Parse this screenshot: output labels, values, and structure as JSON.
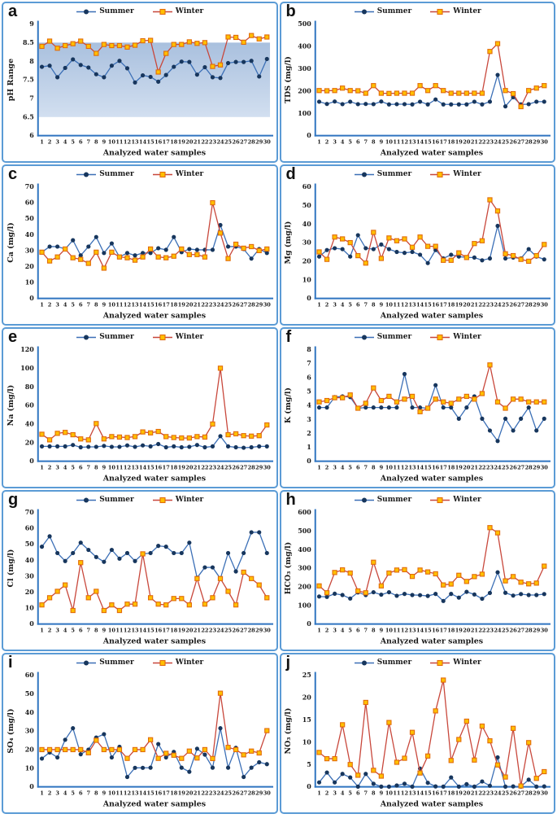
{
  "legend": {
    "summer_label": "Summer",
    "winter_label": "Winter"
  },
  "xlabel": "Analyzed water samples",
  "x_categories": [
    "1",
    "2",
    "3",
    "4",
    "5",
    "6",
    "7",
    "8",
    "9",
    "10",
    "11",
    "12",
    "13",
    "14",
    "15",
    "16",
    "17",
    "18",
    "19",
    "20",
    "21",
    "22",
    "23",
    "24",
    "25",
    "26",
    "27",
    "28",
    "29",
    "30"
  ],
  "colors": {
    "summer_line": "#3B6FB6",
    "summer_marker": "#17365D",
    "winter_line": "#C8473B",
    "winter_marker_fill": "#FFC000",
    "winter_marker_stroke": "#E26B0A",
    "axis": "#2F74C0",
    "panel_border": "#5B9BD5",
    "band_top": "#A9C0DE",
    "band_bottom": "#D2DFF0"
  },
  "chart_data": [
    {
      "letter": "a",
      "type": "line",
      "ylabel": "pH Range",
      "ylim": [
        6,
        9
      ],
      "yticks": [
        6,
        6.5,
        7,
        7.5,
        8,
        8.5,
        9
      ],
      "band": [
        6.5,
        8.5
      ],
      "series": [
        {
          "name": "Summer",
          "values": [
            7.85,
            7.88,
            7.57,
            7.82,
            8.05,
            7.9,
            7.83,
            7.65,
            7.57,
            7.88,
            8.01,
            7.81,
            7.43,
            7.62,
            7.58,
            7.45,
            7.63,
            7.85,
            7.99,
            7.98,
            7.64,
            7.84,
            7.57,
            7.55,
            7.95,
            7.98,
            7.98,
            8.01,
            7.59,
            8.06
          ]
        },
        {
          "name": "Winter",
          "values": [
            8.4,
            8.54,
            8.35,
            8.42,
            8.47,
            8.54,
            8.4,
            8.21,
            8.45,
            8.42,
            8.42,
            8.38,
            8.43,
            8.55,
            8.56,
            7.71,
            8.21,
            8.45,
            8.45,
            8.52,
            8.48,
            8.5,
            7.86,
            7.9,
            8.65,
            8.64,
            8.51,
            8.69,
            8.6,
            8.65
          ]
        }
      ]
    },
    {
      "letter": "b",
      "type": "line",
      "ylabel": "TDS (mg/l)",
      "ylim": [
        0,
        500
      ],
      "yticks": [
        0,
        100,
        200,
        300,
        400,
        500
      ],
      "series": [
        {
          "name": "Summer",
          "values": [
            152,
            142,
            153,
            141,
            152,
            141,
            142,
            141,
            153,
            140,
            141,
            141,
            140,
            152,
            140,
            162,
            140,
            140,
            140,
            140,
            152,
            140,
            152,
            272,
            131,
            172,
            140,
            141,
            152,
            152
          ]
        },
        {
          "name": "Winter",
          "values": [
            202,
            201,
            202,
            213,
            202,
            201,
            190,
            224,
            190,
            189,
            190,
            190,
            190,
            224,
            202,
            224,
            202,
            190,
            190,
            190,
            190,
            190,
            377,
            412,
            202,
            188,
            130,
            202,
            213,
            224
          ]
        }
      ]
    },
    {
      "letter": "c",
      "type": "line",
      "ylabel": "Ca  (mg/l)",
      "ylim": [
        0,
        70
      ],
      "yticks": [
        0,
        10,
        20,
        30,
        40,
        50,
        60,
        70
      ],
      "series": [
        {
          "name": "Summer",
          "values": [
            29,
            32.5,
            32.5,
            31,
            36.5,
            27,
            32.5,
            38.5,
            28.5,
            34.5,
            26,
            28.5,
            27,
            28.5,
            28.5,
            31.5,
            30.5,
            38.5,
            29,
            31,
            30.5,
            30.5,
            30.5,
            46,
            32.5,
            32.5,
            31,
            25,
            31,
            28.5
          ]
        },
        {
          "name": "Winter",
          "values": [
            29,
            23.5,
            26,
            31,
            25.5,
            24.5,
            22,
            29,
            19,
            29,
            26,
            25.5,
            24,
            26,
            31,
            26,
            25.5,
            26.5,
            31,
            27.5,
            27.5,
            26,
            60,
            41,
            25,
            34,
            31.5,
            32.5,
            30,
            31
          ]
        }
      ]
    },
    {
      "letter": "d",
      "type": "line",
      "ylabel": "Mg  (mg/l)",
      "ylim": [
        0,
        60
      ],
      "yticks": [
        0,
        10,
        20,
        30,
        40,
        50,
        60
      ],
      "series": [
        {
          "name": "Summer",
          "values": [
            22.5,
            26,
            27,
            26.5,
            22.5,
            34,
            27,
            26.5,
            29,
            26.5,
            25,
            24.5,
            25,
            23.5,
            19,
            26,
            21.5,
            23.5,
            22.5,
            22,
            22,
            20.5,
            21.5,
            39,
            21.5,
            22,
            21.5,
            26.5,
            22.5,
            21
          ]
        },
        {
          "name": "Winter",
          "values": [
            25,
            21,
            33,
            32,
            30,
            23,
            19,
            35.5,
            21.5,
            32.5,
            31,
            32,
            27.5,
            33,
            28,
            28,
            20.5,
            20.5,
            24.5,
            22,
            29.5,
            31,
            53,
            47,
            24,
            23,
            21,
            20,
            23,
            29
          ]
        }
      ]
    },
    {
      "letter": "e",
      "type": "line",
      "ylabel": "Na  (mg/l)",
      "ylim": [
        0,
        120
      ],
      "yticks": [
        0,
        20,
        40,
        60,
        80,
        100,
        120
      ],
      "series": [
        {
          "name": "Summer",
          "values": [
            16,
            16,
            16,
            16,
            17.5,
            15,
            15.5,
            15.5,
            16.5,
            15.5,
            15.5,
            17,
            15.5,
            17,
            16,
            18.5,
            15,
            16,
            15,
            15.5,
            17.5,
            15,
            16,
            27,
            16,
            15,
            14.5,
            15,
            16,
            16
          ]
        },
        {
          "name": "Winter",
          "values": [
            29,
            23,
            30,
            31,
            28.5,
            24,
            23,
            40.5,
            24,
            26.5,
            26,
            25.5,
            26.5,
            31.5,
            30.5,
            32,
            26.5,
            25.5,
            25,
            25,
            26.5,
            26,
            40,
            100,
            28.5,
            29.5,
            27.5,
            27,
            27.5,
            39
          ]
        }
      ]
    },
    {
      "letter": "f",
      "type": "line",
      "ylabel": "K (mg/l)",
      "ylim": [
        0,
        8
      ],
      "yticks": [
        0,
        1,
        2,
        3,
        4,
        5,
        6,
        7,
        8
      ],
      "series": [
        {
          "name": "Summer",
          "values": [
            3.85,
            3.85,
            4.6,
            4.65,
            4.6,
            3.8,
            3.85,
            3.85,
            3.85,
            3.85,
            3.85,
            6.25,
            3.85,
            3.85,
            3.8,
            5.45,
            3.85,
            3.85,
            3.05,
            3.85,
            4.65,
            3.05,
            2.2,
            1.45,
            3.05,
            2.2,
            3.05,
            3.85,
            2.2,
            3.05
          ]
        },
        {
          "name": "Winter",
          "values": [
            4.25,
            4.35,
            4.55,
            4.55,
            4.75,
            3.8,
            4.15,
            5.25,
            4.35,
            4.65,
            4.25,
            4.45,
            4.65,
            3.55,
            3.8,
            4.45,
            4.25,
            4.15,
            4.45,
            4.65,
            4.45,
            4.85,
            6.9,
            4.25,
            3.8,
            4.45,
            4.45,
            4.25,
            4.25,
            4.25
          ]
        }
      ]
    },
    {
      "letter": "g",
      "type": "line",
      "ylabel": "Cl  (mg/l)",
      "ylim": [
        0,
        70
      ],
      "yticks": [
        0,
        10,
        20,
        30,
        40,
        50,
        60,
        70
      ],
      "series": [
        {
          "name": "Summer",
          "values": [
            48.5,
            55,
            44.5,
            39.5,
            44.5,
            51,
            46.5,
            42,
            39,
            46.5,
            41,
            44.5,
            39.5,
            44,
            44.5,
            49,
            48.5,
            44.5,
            44.5,
            51,
            29,
            35.5,
            35.5,
            28.5,
            44.5,
            33,
            44.5,
            57.5,
            57.5,
            44.5
          ]
        },
        {
          "name": "Winter",
          "values": [
            12,
            16.5,
            20.5,
            24.5,
            8.5,
            38.5,
            16.5,
            20.5,
            8.5,
            12,
            8.5,
            12.5,
            12.5,
            44,
            16.5,
            12.5,
            12,
            16,
            16,
            12,
            28.5,
            12.5,
            16.5,
            28.5,
            20.5,
            12,
            32.5,
            28.5,
            24.5,
            16.5
          ]
        }
      ]
    },
    {
      "letter": "h",
      "type": "line",
      "ylabel": "HCO₃  (mg/l)",
      "ylim": [
        0,
        600
      ],
      "yticks": [
        0,
        100,
        200,
        300,
        400,
        500,
        600
      ],
      "series": [
        {
          "name": "Summer",
          "values": [
            148,
            146,
            163,
            156,
            137,
            170,
            156,
            171,
            158,
            171,
            152,
            162,
            156,
            155,
            151,
            162,
            124,
            162,
            142,
            173,
            159,
            136,
            167,
            278,
            168,
            153,
            161,
            156,
            156,
            161
          ]
        },
        {
          "name": "Winter",
          "values": [
            205,
            168,
            277,
            291,
            274,
            178,
            168,
            332,
            205,
            274,
            290,
            292,
            256,
            290,
            280,
            270,
            210,
            215,
            262,
            229,
            255,
            268,
            518,
            490,
            232,
            255,
            225,
            216,
            220,
            311
          ]
        }
      ]
    },
    {
      "letter": "i",
      "type": "line",
      "ylabel": "SO₄  (mg/l)",
      "ylim": [
        0,
        60
      ],
      "yticks": [
        0,
        10,
        20,
        30,
        40,
        50,
        60
      ],
      "series": [
        {
          "name": "Summer",
          "values": [
            15.2,
            18.5,
            15.8,
            25.3,
            31.5,
            17.5,
            20,
            26.5,
            28.3,
            15.8,
            21.5,
            5.3,
            10.2,
            10.2,
            10.3,
            23,
            15.8,
            18.8,
            10.3,
            8.1,
            20.5,
            17.3,
            10.3,
            31.5,
            10.3,
            21,
            5.3,
            10.3,
            13.2,
            12.2
          ]
        },
        {
          "name": "Winter",
          "values": [
            20,
            20,
            20,
            20,
            20,
            20,
            18.3,
            25,
            20,
            20,
            20,
            15.3,
            20,
            20,
            25.3,
            15.3,
            18,
            17,
            15.3,
            19.2,
            15.5,
            20,
            15.2,
            50.3,
            21.2,
            20,
            17.2,
            19.2,
            18.2,
            30.2
          ]
        }
      ]
    },
    {
      "letter": "j",
      "type": "line",
      "ylabel": "NO₃  (mg/l)",
      "ylim": [
        0,
        25
      ],
      "yticks": [
        0,
        5,
        10,
        15,
        20,
        25
      ],
      "series": [
        {
          "name": "Summer",
          "values": [
            1,
            3.2,
            1,
            2.9,
            2.1,
            0.05,
            2.9,
            0.7,
            0.05,
            0.05,
            0.3,
            0.7,
            0.05,
            4.1,
            0.9,
            0.1,
            0.05,
            2.1,
            0.05,
            0.6,
            0.05,
            1.2,
            0.25,
            6.6,
            0.05,
            0.1,
            0.05,
            1.6,
            0.05,
            0.1
          ]
        },
        {
          "name": "Winter",
          "values": [
            7.7,
            6.3,
            6.3,
            13.9,
            5,
            2.6,
            18.9,
            3.7,
            2.4,
            14.4,
            5.5,
            6.4,
            12.2,
            3.1,
            6.9,
            17,
            23.9,
            5.9,
            10.6,
            14.7,
            6,
            13.6,
            10.3,
            4.9,
            2.2,
            13.1,
            0.2,
            9.9,
            1.9,
            3.4
          ]
        }
      ]
    }
  ]
}
